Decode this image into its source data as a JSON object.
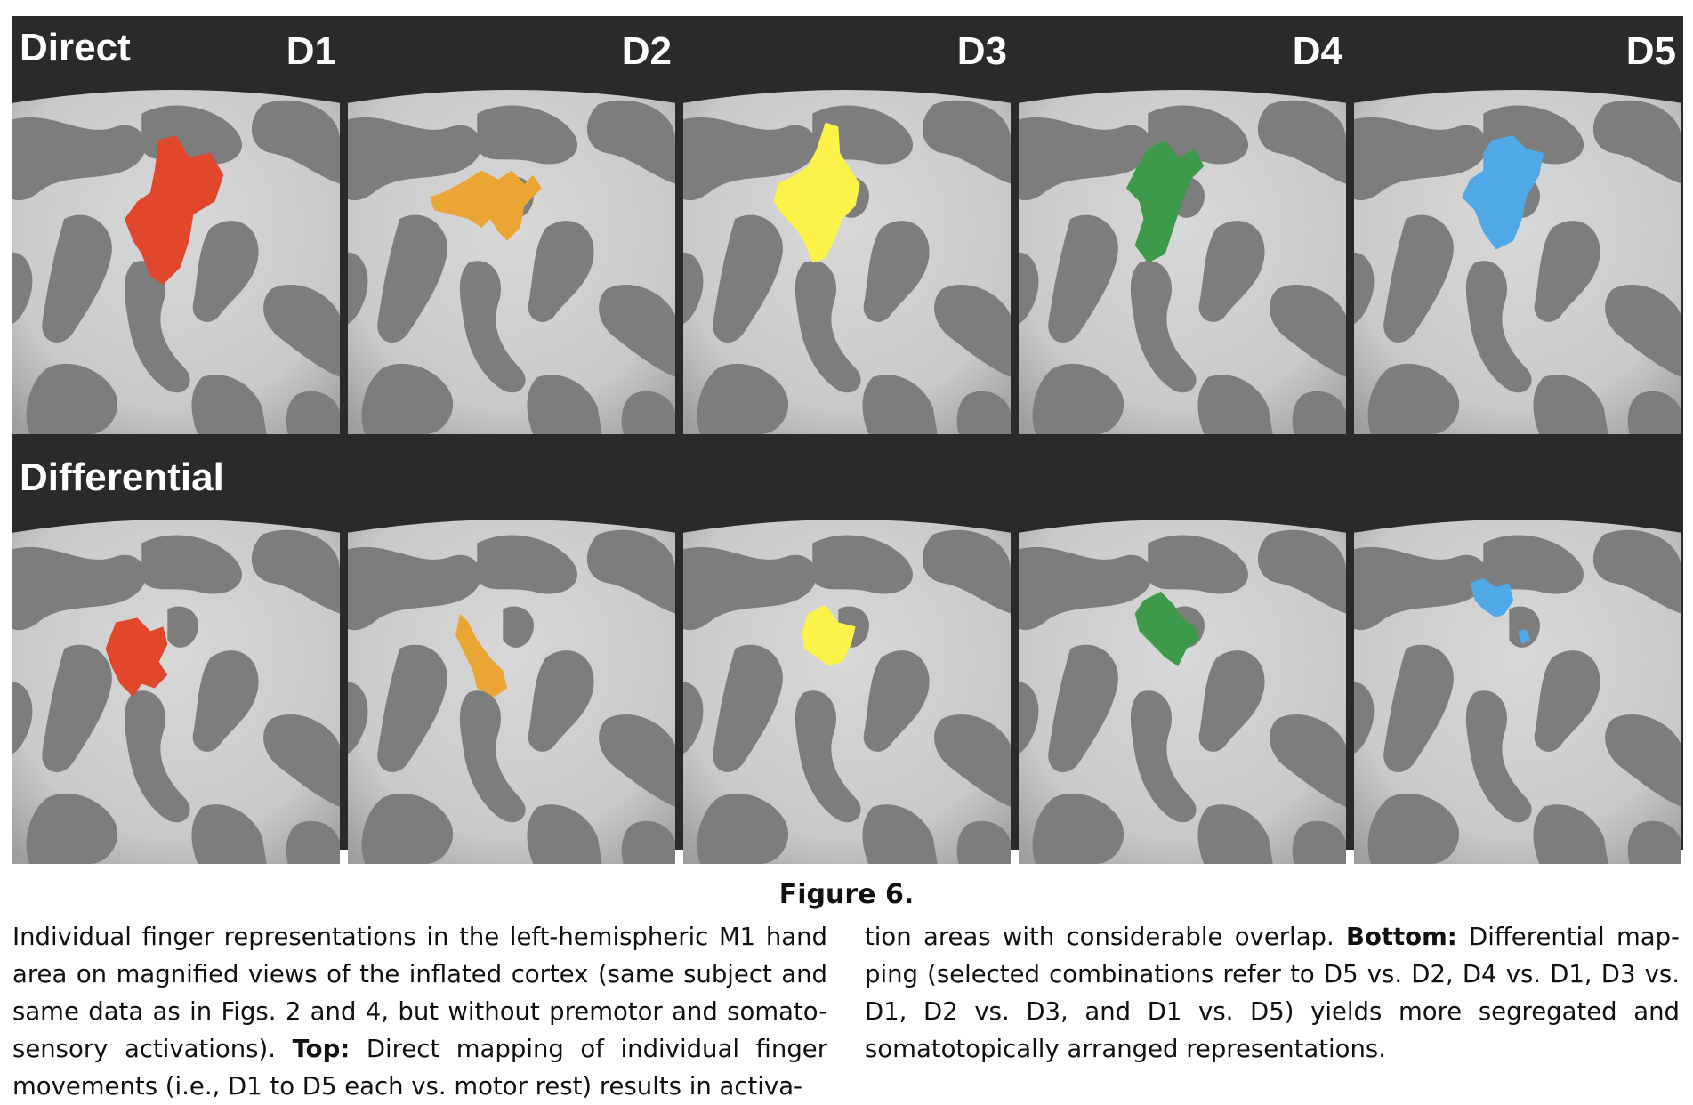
{
  "figure": {
    "row_labels": [
      "Direct",
      "Differential"
    ],
    "column_labels": [
      "D1",
      "D2",
      "D3",
      "D4",
      "D5"
    ],
    "colors": {
      "D1": "#e0472b",
      "D2": "#eba535",
      "D3": "#fbf34a",
      "D4": "#3d9a4a",
      "D5": "#4fa9e6",
      "cortex_light": "#c9c9c9",
      "cortex_dark": "#7d7d7d",
      "background": "#2a2a2a"
    }
  },
  "caption": {
    "title": "Figure 6.",
    "left_lines": [
      {
        "text": "Individual finger representations in the left-hemispheric M1 hand"
      },
      {
        "text": "area on magnified views of the inflated cortex (same subject and"
      },
      {
        "text": "same data as in Figs. 2 and 4, but without premotor and somato-"
      },
      {
        "pre": "sensory activations). ",
        "bold": "Top:",
        "post": " Direct mapping of individual finger"
      },
      {
        "text": "movements (i.e., D1 to D5 each vs. motor rest) results in activa-"
      }
    ],
    "right_lines": [
      {
        "pre": "tion areas with considerable overlap. ",
        "bold": "Bottom:",
        "post": " Differential map-"
      },
      {
        "text": "ping (selected combinations refer to D5 vs. D2, D4 vs. D1, D3 vs."
      },
      {
        "text": "D1, D2 vs. D3, and D1 vs. D5) yields more segregated and"
      },
      {
        "text": "somatotopically arranged representations."
      }
    ]
  }
}
